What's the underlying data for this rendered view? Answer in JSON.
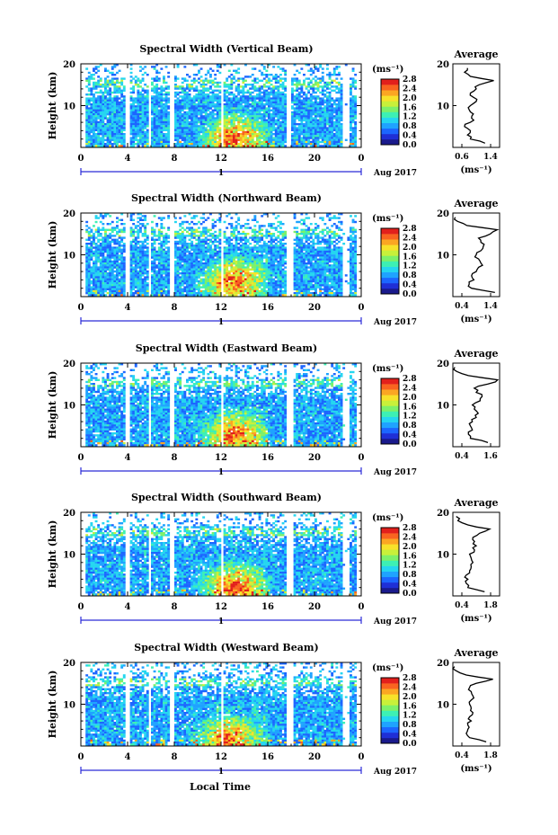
{
  "figure": {
    "xlabel_bottom": "Local Time",
    "date_label": "Aug 2017",
    "day_marker": "1",
    "colors": {
      "scale": [
        "#1a1a8c",
        "#1f2fd6",
        "#1c66ff",
        "#1fa3ff",
        "#25d6f0",
        "#3df0b4",
        "#7df06a",
        "#c8f03a",
        "#f7e22a",
        "#fba623",
        "#f96420",
        "#e2201c"
      ],
      "axis": "#000000",
      "day_bar": "#2b2bd8",
      "gap": "#ffffff"
    }
  },
  "chart_data": [
    {
      "type": "heatmap",
      "title": "Spectral Width (Vertical Beam)",
      "xlabel": "",
      "ylabel": "Height (km)",
      "xlim": [
        0,
        24
      ],
      "ylim": [
        0,
        20
      ],
      "xticks": [
        "0",
        "4",
        "8",
        "12",
        "16",
        "20",
        "0"
      ],
      "yticks": [
        "20",
        "10"
      ],
      "colorbar": {
        "unit": "(ms⁻¹)",
        "ticks": [
          "2.8",
          "2.4",
          "2.0",
          "1.6",
          "1.2",
          "0.8",
          "0.4",
          "0.0"
        ],
        "range": [
          0.0,
          2.8
        ]
      },
      "data_gaps_hours": [
        [
          3.6,
          4.0
        ],
        [
          5.7,
          5.9
        ],
        [
          7.4,
          7.8
        ],
        [
          11.8,
          12.1
        ],
        [
          17.6,
          17.9
        ]
      ],
      "coverage_hours": [
        0.4,
        23.5
      ],
      "hot_spots": [
        {
          "hour": 13.0,
          "height_km": 2.5,
          "value": 2.8
        }
      ],
      "average_profile": {
        "title": "Average",
        "xlabel": "(ms⁻¹)",
        "xlim": [
          0.6,
          1.4
        ],
        "xticks": [
          "0.6",
          "1.4"
        ],
        "yticks": [
          "20",
          "10"
        ],
        "height_km": [
          1,
          2,
          3,
          4,
          5,
          6,
          7,
          8,
          9,
          10,
          11,
          12,
          13,
          14,
          15,
          16,
          17,
          18,
          19
        ],
        "values": [
          1.15,
          0.9,
          0.85,
          0.9,
          0.8,
          0.9,
          0.92,
          0.95,
          0.88,
          0.9,
          1.0,
          0.95,
          0.9,
          1.0,
          1.05,
          1.3,
          0.9,
          0.8,
          0.85
        ]
      }
    },
    {
      "type": "heatmap",
      "title": "Spectral Width (Northward Beam)",
      "xlabel": "",
      "ylabel": "Height (km)",
      "xlim": [
        0,
        24
      ],
      "ylim": [
        0,
        20
      ],
      "xticks": [
        "0",
        "4",
        "8",
        "12",
        "16",
        "20",
        "0"
      ],
      "yticks": [
        "20",
        "10"
      ],
      "colorbar": {
        "unit": "(ms⁻¹)",
        "ticks": [
          "2.8",
          "2.4",
          "2.0",
          "1.6",
          "1.2",
          "0.8",
          "0.4",
          "0.0"
        ],
        "range": [
          0.0,
          2.8
        ]
      },
      "data_gaps_hours": [
        [
          3.6,
          4.0
        ],
        [
          5.7,
          5.9
        ],
        [
          7.4,
          7.8
        ],
        [
          11.8,
          12.1
        ],
        [
          17.6,
          18.1
        ]
      ],
      "coverage_hours": [
        0.4,
        23.5
      ],
      "hot_spots": [
        {
          "hour": 13.0,
          "height_km": 4.0,
          "value": 2.6
        }
      ],
      "average_profile": {
        "title": "Average",
        "xlabel": "(ms⁻¹)",
        "xlim": [
          0.4,
          1.4
        ],
        "xticks": [
          "0.4",
          "1.4"
        ],
        "yticks": [
          "20",
          "10"
        ],
        "height_km": [
          1,
          2,
          3,
          4,
          5,
          6,
          7,
          8,
          9,
          10,
          11,
          12,
          13,
          14,
          15,
          16,
          17,
          18,
          19
        ],
        "values": [
          1.3,
          0.8,
          0.75,
          0.85,
          0.8,
          0.9,
          0.95,
          1.0,
          0.95,
          0.9,
          1.0,
          1.05,
          1.0,
          0.95,
          1.2,
          1.35,
          0.7,
          0.5,
          0.45
        ]
      }
    },
    {
      "type": "heatmap",
      "title": "Spectral Width (Eastward Beam)",
      "xlabel": "",
      "ylabel": "Height (km)",
      "xlim": [
        0,
        24
      ],
      "ylim": [
        0,
        20
      ],
      "xticks": [
        "0",
        "4",
        "8",
        "12",
        "16",
        "20",
        "0"
      ],
      "yticks": [
        "20",
        "10"
      ],
      "colorbar": {
        "unit": "(ms⁻¹)",
        "ticks": [
          "2.8",
          "2.4",
          "2.0",
          "1.6",
          "1.2",
          "0.8",
          "0.4",
          "0.0"
        ],
        "range": [
          0.0,
          2.8
        ]
      },
      "data_gaps_hours": [
        [
          3.6,
          4.0
        ],
        [
          5.7,
          5.9
        ],
        [
          7.4,
          7.8
        ],
        [
          11.8,
          12.1
        ],
        [
          17.6,
          18.1
        ]
      ],
      "coverage_hours": [
        0.4,
        23.5
      ],
      "hot_spots": [
        {
          "hour": 13.0,
          "height_km": 3.0,
          "value": 2.8
        }
      ],
      "average_profile": {
        "title": "Average",
        "xlabel": "",
        "xlim": [
          0.4,
          1.6
        ],
        "xticks": [
          "0.4",
          "1.6"
        ],
        "yticks": [
          "20",
          "10"
        ],
        "height_km": [
          1,
          2,
          3,
          4,
          5,
          6,
          7,
          8,
          9,
          10,
          11,
          12,
          13,
          14,
          15,
          16,
          17,
          18,
          19
        ],
        "values": [
          1.3,
          0.85,
          0.8,
          0.9,
          0.85,
          0.9,
          1.0,
          1.05,
          0.95,
          0.9,
          1.1,
          1.15,
          1.0,
          0.95,
          1.3,
          1.55,
          0.8,
          0.5,
          0.45
        ]
      }
    },
    {
      "type": "heatmap",
      "title": "Spectral Width (Southward Beam)",
      "xlabel": "",
      "ylabel": "Height (km)",
      "xlim": [
        0,
        24
      ],
      "ylim": [
        0,
        20
      ],
      "xticks": [
        "0",
        "4",
        "8",
        "12",
        "16",
        "20",
        "0"
      ],
      "yticks": [
        "20",
        "10"
      ],
      "colorbar": {
        "unit": "(ms⁻¹)",
        "ticks": [
          "2.8",
          "2.4",
          "2.0",
          "1.6",
          "1.2",
          "0.8",
          "0.4",
          "0.0"
        ],
        "range": [
          0.0,
          2.8
        ]
      },
      "data_gaps_hours": [
        [
          3.6,
          4.0
        ],
        [
          5.7,
          5.9
        ],
        [
          7.4,
          7.8
        ],
        [
          11.8,
          12.1
        ],
        [
          17.6,
          18.1
        ]
      ],
      "coverage_hours": [
        0.4,
        23.5
      ],
      "hot_spots": [
        {
          "hour": 13.0,
          "height_km": 2.5,
          "value": 2.8
        }
      ],
      "average_profile": {
        "title": "Average",
        "xlabel": "(ms⁻¹)",
        "xlim": [
          0.4,
          1.8
        ],
        "xticks": [
          "0.4",
          "1.8"
        ],
        "yticks": [
          "20",
          "10"
        ],
        "height_km": [
          1,
          2,
          3,
          4,
          5,
          6,
          7,
          8,
          9,
          10,
          11,
          12,
          13,
          14,
          15,
          16,
          17,
          18,
          19
        ],
        "values": [
          1.35,
          0.85,
          0.8,
          0.85,
          0.8,
          0.9,
          0.95,
          1.0,
          0.95,
          0.9,
          1.05,
          1.1,
          1.05,
          1.0,
          1.2,
          1.5,
          0.85,
          0.55,
          0.5
        ]
      }
    },
    {
      "type": "heatmap",
      "title": "Spectral Width (Westward Beam)",
      "xlabel": "Local Time",
      "ylabel": "Height (km)",
      "xlim": [
        0,
        24
      ],
      "ylim": [
        0,
        20
      ],
      "xticks": [
        "0",
        "4",
        "8",
        "12",
        "16",
        "20",
        "0"
      ],
      "yticks": [
        "20",
        "10"
      ],
      "colorbar": {
        "unit": "(ms⁻¹)",
        "ticks": [
          "2.8",
          "2.4",
          "2.0",
          "1.6",
          "1.2",
          "0.8",
          "0.4",
          "0.0"
        ],
        "range": [
          0.0,
          2.8
        ]
      },
      "data_gaps_hours": [
        [
          3.6,
          4.0
        ],
        [
          5.7,
          5.9
        ],
        [
          7.4,
          7.8
        ],
        [
          11.8,
          12.1
        ],
        [
          17.6,
          18.1
        ]
      ],
      "coverage_hours": [
        0.4,
        23.5
      ],
      "hot_spots": [
        {
          "hour": 12.5,
          "height_km": 2.0,
          "value": 2.8
        }
      ],
      "average_profile": {
        "title": "Average",
        "xlabel": "(ms⁻¹)",
        "xlim": [
          0.4,
          1.8
        ],
        "xticks": [
          "0.4",
          "1.8"
        ],
        "yticks": [
          "20",
          "10"
        ],
        "height_km": [
          1,
          2,
          3,
          4,
          5,
          6,
          7,
          8,
          9,
          10,
          11,
          12,
          13,
          14,
          15,
          16,
          17,
          18,
          19
        ],
        "values": [
          1.4,
          0.9,
          0.8,
          0.85,
          0.85,
          0.95,
          0.9,
          1.0,
          0.95,
          0.9,
          0.95,
          1.0,
          0.95,
          0.9,
          1.1,
          1.6,
          0.8,
          0.5,
          0.45
        ]
      }
    }
  ]
}
